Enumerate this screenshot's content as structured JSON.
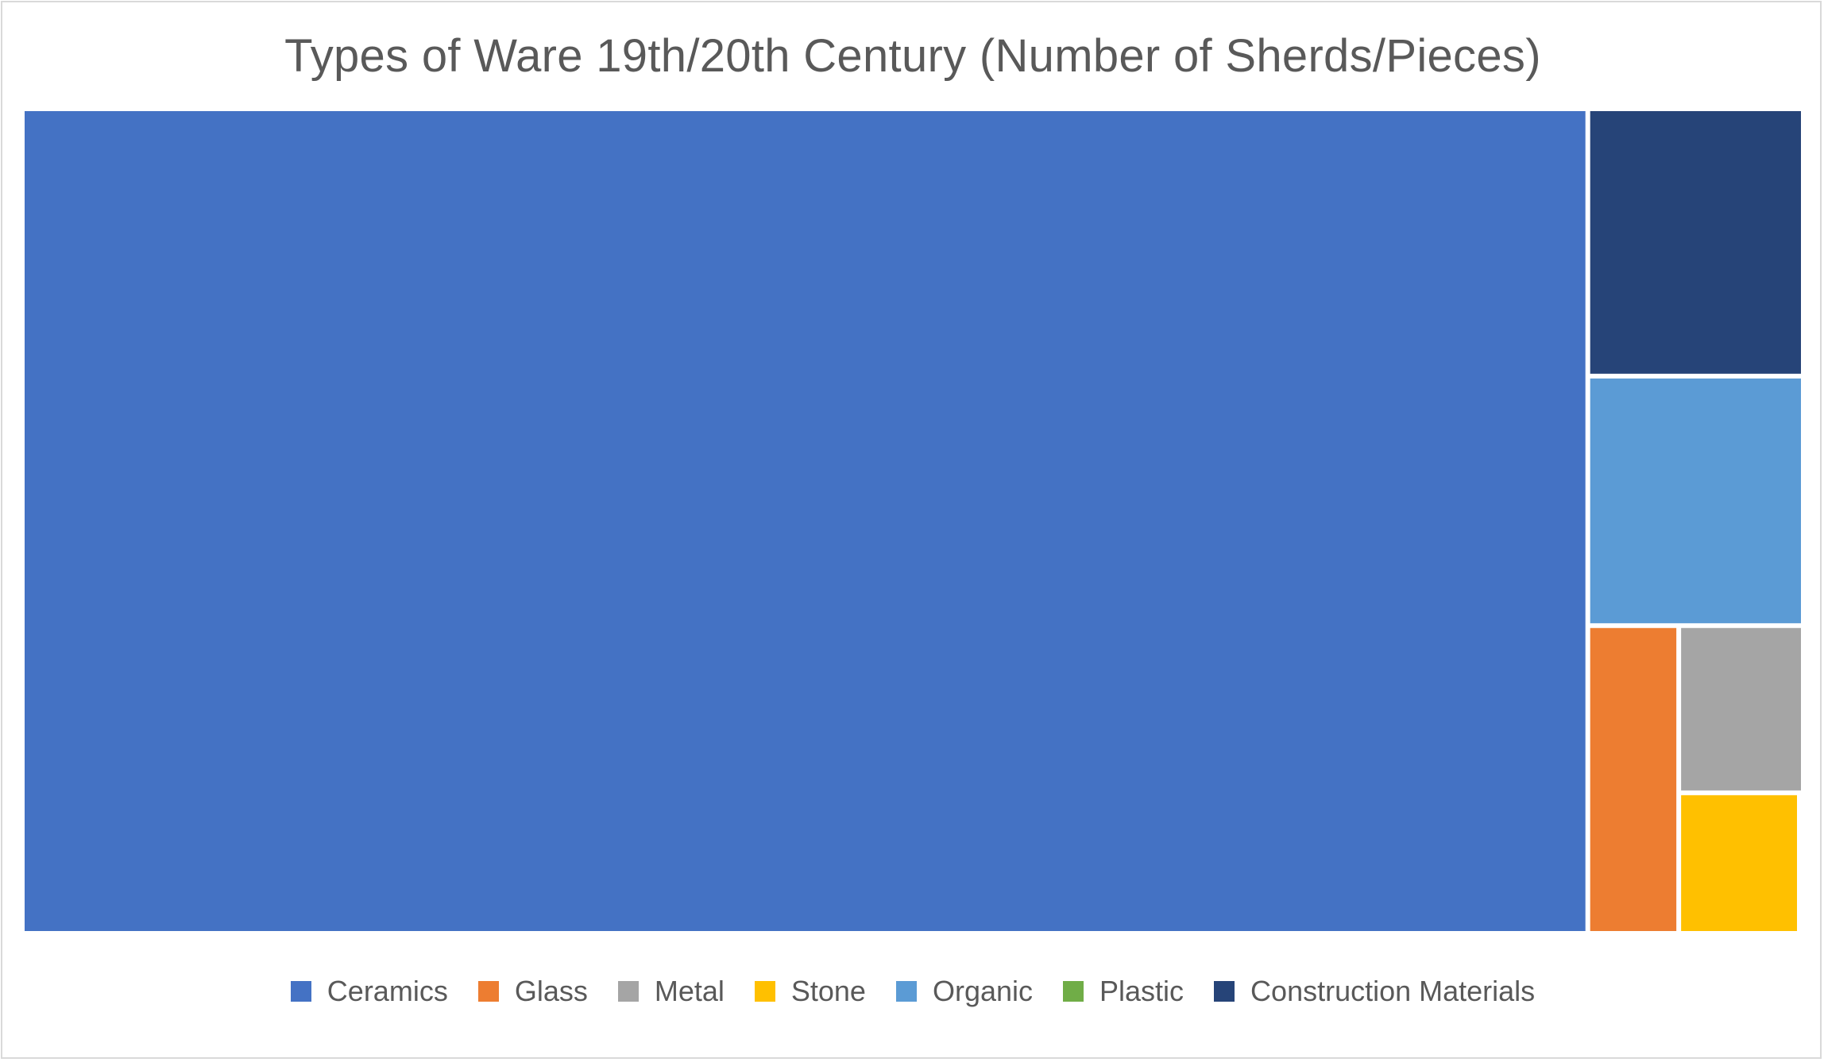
{
  "chart_data": {
    "type": "treemap",
    "title": "Types of Ware 19th/20th Century (Number of Sherds/Pieces)",
    "items": [
      {
        "name": "Ceramics",
        "value": 1012,
        "color": "#4472C4"
      },
      {
        "name": "Construction Materials",
        "value": 45,
        "color": "#264478"
      },
      {
        "name": "Organic",
        "value": 42,
        "color": "#5B9BD5"
      },
      {
        "name": "Glass",
        "value": 22,
        "color": "#ED7D31"
      },
      {
        "name": "Metal",
        "value": 16,
        "color": "#A5A5A5"
      },
      {
        "name": "Stone",
        "value": 13,
        "color": "#FFC000"
      },
      {
        "name": "Plastic",
        "value": 0,
        "color": "#70AD47"
      }
    ],
    "legend": [
      {
        "label": "Ceramics",
        "color": "#4472C4"
      },
      {
        "label": "Glass",
        "color": "#ED7D31"
      },
      {
        "label": "Metal",
        "color": "#A5A5A5"
      },
      {
        "label": "Stone",
        "color": "#FFC000"
      },
      {
        "label": "Organic",
        "color": "#5B9BD5"
      },
      {
        "label": "Plastic",
        "color": "#70AD47"
      },
      {
        "label": "Construction Materials",
        "color": "#264478"
      }
    ],
    "legend_position": "bottom"
  }
}
